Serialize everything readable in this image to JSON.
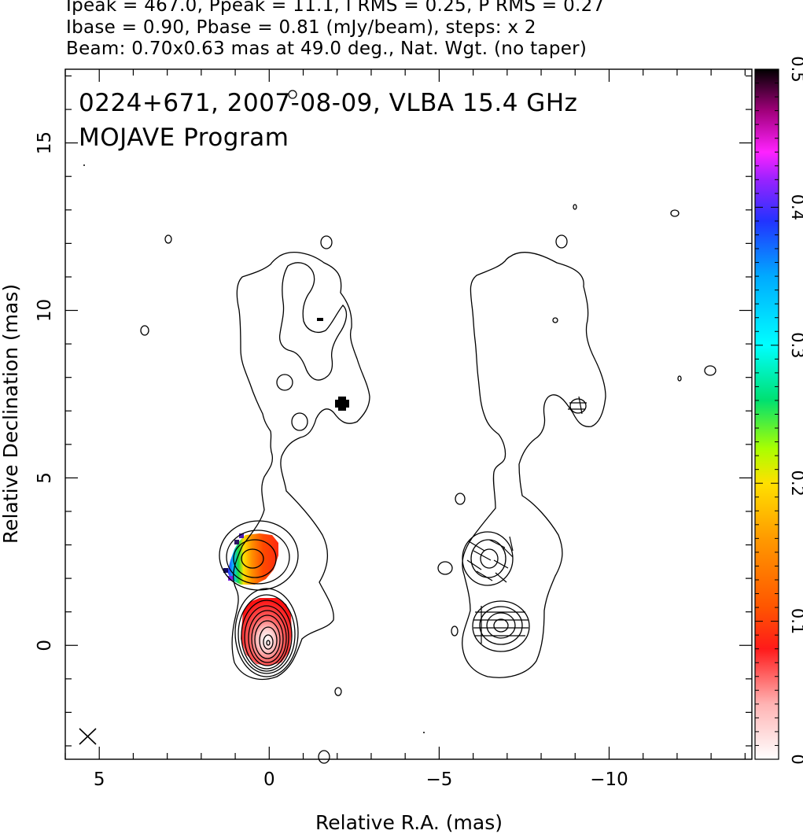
{
  "header": {
    "line1": "Ipeak = 467.0, Ppeak = 11.1, I RMS = 0.25, P RMS = 0.27",
    "line2": "Ibase = 0.90, Pbase = 0.81 (mJy/beam), steps: x 2",
    "line3": "Beam: 0.70x0.63 mas at 49.0 deg., Nat. Wgt. (no taper)"
  },
  "chart_data": {
    "type": "heatmap",
    "title": "0224+671, 2007-08-09, VLBA 15.4 GHz",
    "subtitle": "MOJAVE Program",
    "xlabel": "Relative R.A. (mas)",
    "ylabel": "Relative Declination (mas)",
    "xlim": [
      6.0,
      -14.2
    ],
    "ylim": [
      -3.4,
      17.2
    ],
    "x_ticks": [
      5,
      0,
      -5,
      -10
    ],
    "x_tick_labels": [
      "5",
      "0",
      "−5",
      "−10"
    ],
    "y_ticks": [
      0,
      5,
      10,
      15
    ],
    "y_tick_labels": [
      "0",
      "5",
      "10",
      "15"
    ],
    "colorbar": {
      "range": [
        0,
        0.5
      ],
      "ticks": [
        0,
        0.1,
        0.2,
        0.3,
        0.4,
        0.5
      ],
      "tick_labels": [
        "0",
        "0.1",
        "0.2",
        "0.3",
        "0.4",
        "0.5"
      ]
    },
    "stokes_I_peak_mJy": 467.0,
    "pol_peak_mJy": 11.1,
    "I_rms": 0.25,
    "P_rms": 0.27,
    "I_base": 0.9,
    "P_base": 0.81,
    "contour_step_factor": 2,
    "beam": {
      "major_mas": 0.7,
      "minor_mas": 0.63,
      "pa_deg": 49.0
    },
    "left_panel": {
      "cores": [
        {
          "x": 0.0,
          "y": 0.1,
          "levels": 10
        },
        {
          "x": 0.45,
          "y": 2.6,
          "levels": 4
        }
      ],
      "fractional_pol_patches": [
        {
          "region": "core",
          "x": 0.0,
          "y": 0.4,
          "value": 0.06
        },
        {
          "region": "jet-east",
          "x": 0.3,
          "y": 2.6,
          "value": 0.09
        },
        {
          "region": "jet-east-edge",
          "x": 0.9,
          "y": 2.5,
          "value": 0.2
        },
        {
          "region": "jet-east-rim",
          "x": 1.1,
          "y": 2.5,
          "value": 0.42
        }
      ]
    },
    "right_panel": {
      "cores": [
        {
          "x": -6.9,
          "y": 0.6,
          "levels": 4
        },
        {
          "x": -6.5,
          "y": 2.6,
          "levels": 3
        }
      ]
    },
    "colors": {
      "axes": "#000000",
      "contour": "#000000",
      "background": "#ffffff"
    }
  }
}
